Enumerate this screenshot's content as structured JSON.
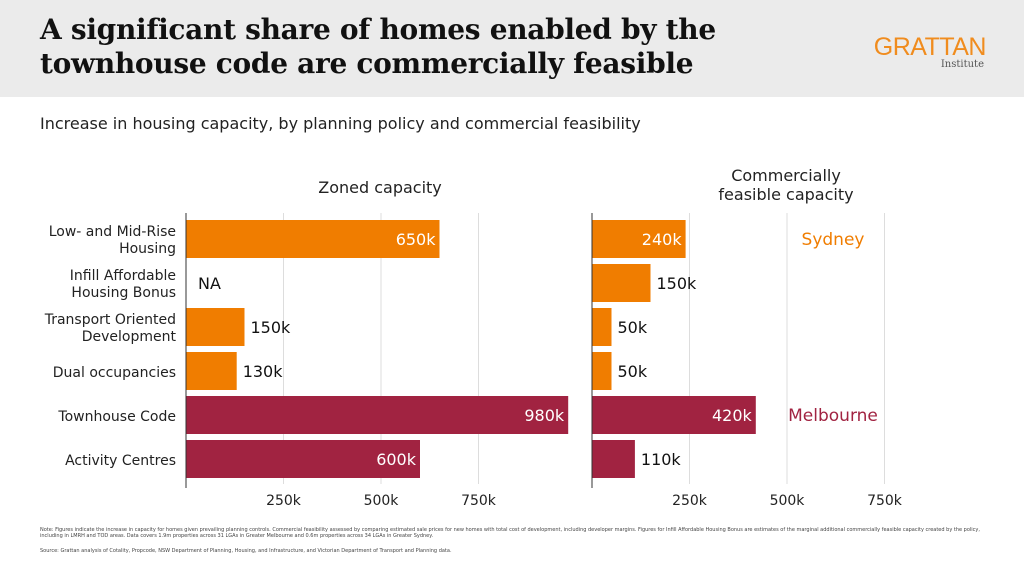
{
  "header": {
    "title_line1": "A significant share of homes enabled by the",
    "title_line2": "townhouse code are commercially feasible",
    "logo_main": "GRATTAN",
    "logo_sub": "Institute"
  },
  "subtitle": "Increase in housing capacity, by planning policy and commercial feasibility",
  "colors": {
    "sydney": "#f07d00",
    "melbourne": "#a12341",
    "grid": "#dddddd",
    "axis": "#333333"
  },
  "chart_data": [
    {
      "type": "bar",
      "orientation": "horizontal",
      "title": "Zoned capacity",
      "categories": [
        "Low- and Mid-Rise Housing",
        "Infill Affordable Housing Bonus",
        "Transport Oriented Development",
        "Dual occupancies",
        "Townhouse Code",
        "Activity Centres"
      ],
      "category_label_lines": [
        [
          "Low- and Mid-Rise",
          "Housing"
        ],
        [
          "Infill Affordable",
          "Housing Bonus"
        ],
        [
          "Transport Oriented",
          "Development"
        ],
        [
          "Dual occupancies"
        ],
        [
          "Townhouse Code"
        ],
        [
          "Activity Centres"
        ]
      ],
      "values": [
        650000,
        null,
        150000,
        130000,
        980000,
        600000
      ],
      "labels": [
        "650k",
        "NA",
        "150k",
        "130k",
        "980k",
        "600k"
      ],
      "groups": [
        "Sydney",
        "Sydney",
        "Sydney",
        "Sydney",
        "Melbourne",
        "Melbourne"
      ],
      "xlim": [
        0,
        1000000
      ],
      "xticks": [
        250000,
        500000,
        750000
      ],
      "xtick_labels": [
        "250k",
        "500k",
        "750k"
      ],
      "grid": true
    },
    {
      "type": "bar",
      "orientation": "horizontal",
      "title": "Commercially feasible capacity",
      "title_lines": [
        "Commercially",
        "feasible capacity"
      ],
      "categories": [
        "Low- and Mid-Rise Housing",
        "Infill Affordable Housing Bonus",
        "Transport Oriented Development",
        "Dual occupancies",
        "Townhouse Code",
        "Activity Centres"
      ],
      "values": [
        240000,
        150000,
        50000,
        50000,
        420000,
        110000
      ],
      "labels": [
        "240k",
        "150k",
        "50k",
        "50k",
        "420k",
        "110k"
      ],
      "groups": [
        "Sydney",
        "Sydney",
        "Sydney",
        "Sydney",
        "Melbourne",
        "Melbourne"
      ],
      "xlim": [
        0,
        1000000
      ],
      "xticks": [
        250000,
        500000,
        750000
      ],
      "xtick_labels": [
        "250k",
        "500k",
        "750k"
      ],
      "grid": true
    }
  ],
  "group_labels": [
    {
      "name": "Sydney",
      "row": 0
    },
    {
      "name": "Melbourne",
      "row": 4
    }
  ],
  "footnote": {
    "note": "Note: Figures indicate the increase in capacity for homes given prevailing planning controls. Commercial feasibility assessed by comparing estimated sale prices for new homes with total cost of development, including developer margins. Figures for Infill Affordable Housing Bonus are estimates of the marginal additional commercially feasible capacity created by the policy, including in LMRH and TOD areas. Data covers 1.9m properties across 31 LGAs in Greater Melbourne and 0.6m properties across 34 LGAs in Greater Sydney.",
    "source": "Source: Grattan analysis of Cotality, Propcode, NSW Department of Planning, Housing, and Infrastructure, and Victorian Department of Transport and Planning data."
  }
}
